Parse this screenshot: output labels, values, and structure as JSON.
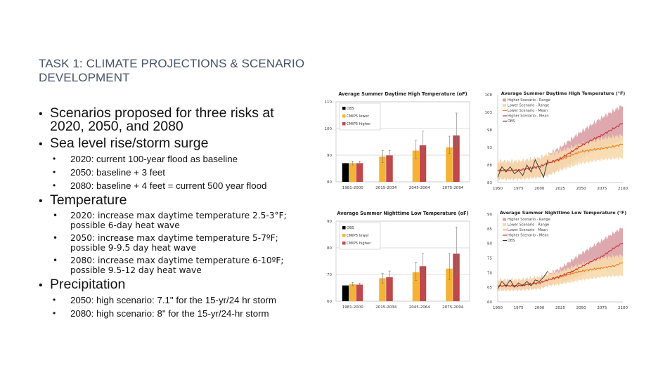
{
  "slide": {
    "title": "TASK 1: CLIMATE PROJECTIONS & SCENARIO DEVELOPMENT",
    "bullets": [
      {
        "text": "Scenarios proposed for three risks at 2020, 2050, and 2080",
        "sub": []
      },
      {
        "text": "Sea level rise/storm surge",
        "sub": [
          "2020: current 100-year flood as baseline",
          "2050: baseline + 3 feet",
          "2080: baseline + 4 feet = current 500 year flood"
        ]
      },
      {
        "text": "Temperature",
        "sub": [
          "2020: increase max daytime temperature 2.5-3°F; possible 6-day heat wave",
          "2050: increase max daytime temperature 5-7ºF; possible 9-9.5 day heat wave",
          "2080: increase max daytime temperature 6-10ºF; possible 9.5-12 day heat wave"
        ]
      },
      {
        "text": "Precipitation",
        "sub": [
          "2050: high scenario: 7.1\" for the 15-yr/24 hr storm",
          "2080: high scenario: 8\" for the 15-yr/24-hr storm"
        ]
      }
    ]
  },
  "colors": {
    "title": "#44546a",
    "obs": "#000000",
    "lower": "#f5b335",
    "higher": "#c0474a",
    "lower_range": "#f7d9ad",
    "higher_range": "#d9a0a6",
    "lower_mean": "#e8821e",
    "higher_mean": "#c9363b",
    "grid": "#d0d0d0"
  },
  "chart_data": [
    {
      "type": "bar",
      "title": "Average Summer Daytime High Temperature (oF)",
      "categories": [
        "1981-2000",
        "2015-2034",
        "2045-2064",
        "2075-2094"
      ],
      "ylim": [
        80,
        110
      ],
      "yticks": [
        80,
        90,
        100,
        110
      ],
      "legend": "top-left",
      "series": [
        {
          "name": "OBS",
          "values": [
            87,
            null,
            null,
            null
          ],
          "err_low": [
            null,
            null,
            null,
            null
          ],
          "err_high": [
            null,
            null,
            null,
            null
          ]
        },
        {
          "name": "CMIP5 lower",
          "values": [
            87,
            89.5,
            91.7,
            92.9
          ],
          "err_low": [
            86.3,
            87.2,
            88.7,
            90.7
          ],
          "err_high": [
            87.8,
            91.7,
            95.6,
            97.1
          ]
        },
        {
          "name": "CMIP5 higher",
          "values": [
            87,
            89.9,
            93.7,
            97.4
          ],
          "err_low": [
            86.3,
            87.3,
            90.8,
            93.2
          ],
          "err_high": [
            87.8,
            91.8,
            99.0,
            105.8
          ]
        }
      ]
    },
    {
      "type": "line",
      "title": "Average Summer Daytime High Temperature (°F)",
      "xlim": [
        1950,
        2100
      ],
      "xticks": [
        1950,
        1975,
        2000,
        2025,
        2050,
        2075,
        2100
      ],
      "ylim": [
        83,
        108
      ],
      "yticks": [
        83,
        88,
        93,
        98,
        103,
        108
      ],
      "legend": "top-left",
      "series": [
        {
          "name": "Higher Scenario - Range",
          "kind": "band",
          "x": [
            1950,
            1975,
            2000,
            2010,
            2025,
            2050,
            2075,
            2100
          ],
          "low": [
            84,
            84,
            84.5,
            85,
            87,
            90,
            93,
            95
          ],
          "high": [
            89,
            89,
            90,
            91,
            93,
            97.5,
            101.5,
            105
          ]
        },
        {
          "name": "Lower Scenario - Range",
          "kind": "band",
          "x": [
            1950,
            1975,
            2000,
            2010,
            2025,
            2050,
            2075,
            2100
          ],
          "low": [
            84,
            84,
            84.5,
            85,
            86.5,
            88.5,
            89.5,
            90
          ],
          "high": [
            89,
            89,
            90,
            91,
            92,
            94,
            95.5,
            96.5
          ]
        },
        {
          "name": "Lower Scenario - Mean",
          "kind": "line",
          "x": [
            1950,
            1975,
            2000,
            2010,
            2025,
            2040,
            2050,
            2060,
            2075,
            2090,
            2100
          ],
          "y": [
            86.5,
            86.5,
            87.5,
            88.5,
            89.5,
            91,
            91.8,
            92.2,
            92.7,
            93.3,
            94
          ]
        },
        {
          "name": "Higher Scenario - Mean",
          "kind": "line",
          "x": [
            1950,
            1975,
            2000,
            2010,
            2025,
            2040,
            2050,
            2060,
            2075,
            2090,
            2100
          ],
          "y": [
            86.5,
            86.5,
            87.5,
            88.5,
            89.8,
            92,
            93.5,
            94.8,
            96.5,
            98.5,
            100
          ]
        },
        {
          "name": "OBS",
          "kind": "line",
          "x": [
            1950,
            1955,
            1960,
            1965,
            1970,
            1975,
            1980,
            1985,
            1990,
            1995,
            2000,
            2005,
            2010
          ],
          "y": [
            84.5,
            87.5,
            86,
            87.5,
            85.5,
            86.5,
            85,
            88,
            86,
            89.5,
            87,
            84.5,
            89.5
          ]
        }
      ]
    },
    {
      "type": "bar",
      "title": "Average Summer Nighttime Low Temperature (oF)",
      "categories": [
        "1981-2000",
        "2015-2034",
        "2045-2064",
        "2075-2094"
      ],
      "ylim": [
        60,
        90
      ],
      "yticks": [
        60,
        70,
        80,
        90
      ],
      "legend": "top-left",
      "series": [
        {
          "name": "OBS",
          "values": [
            65.9,
            null,
            null,
            null
          ],
          "err_low": [
            null,
            null,
            null,
            null
          ],
          "err_high": [
            null,
            null,
            null,
            null
          ]
        },
        {
          "name": "CMIP5 lower",
          "values": [
            66.4,
            68.6,
            70.9,
            72.2
          ],
          "err_low": [
            65.8,
            66.8,
            67.8,
            68.1
          ],
          "err_high": [
            67.0,
            70.4,
            74.6,
            77.8
          ]
        },
        {
          "name": "CMIP5 higher",
          "values": [
            66.2,
            69.0,
            73.1,
            77.8
          ],
          "err_low": [
            65.6,
            66.9,
            68.6,
            69.8
          ],
          "err_high": [
            66.8,
            71.3,
            77.8,
            87.8
          ]
        }
      ]
    },
    {
      "type": "line",
      "title": "Average Summer Nighttime Low Temperature (°F)",
      "xlim": [
        1950,
        2100
      ],
      "xticks": [
        1950,
        1975,
        2000,
        2025,
        2050,
        2075,
        2100
      ],
      "ylim": [
        60,
        90
      ],
      "yticks": [
        60,
        65,
        70,
        75,
        80,
        85,
        90
      ],
      "legend": "top-left",
      "series": [
        {
          "name": "Higher Scenario - Range",
          "kind": "band",
          "x": [
            1950,
            1975,
            2000,
            2010,
            2025,
            2050,
            2075,
            2100
          ],
          "low": [
            64,
            64,
            64.5,
            65.5,
            66.5,
            69,
            72,
            74
          ],
          "high": [
            67.5,
            67.5,
            68.5,
            69.5,
            71.5,
            76.5,
            81,
            85.5
          ]
        },
        {
          "name": "Lower Scenario - Range",
          "kind": "band",
          "x": [
            1950,
            1975,
            2000,
            2010,
            2025,
            2050,
            2075,
            2100
          ],
          "low": [
            64,
            64,
            64.5,
            65.5,
            66,
            67.5,
            68.5,
            69
          ],
          "high": [
            67.5,
            67.5,
            68.5,
            69.5,
            70.5,
            73,
            75,
            76
          ]
        },
        {
          "name": "Lower Scenario - Mean",
          "kind": "line",
          "x": [
            1950,
            1975,
            2000,
            2010,
            2025,
            2040,
            2050,
            2060,
            2075,
            2090,
            2100
          ],
          "y": [
            65.5,
            65.5,
            66.5,
            67.5,
            68.5,
            69.8,
            70.5,
            71,
            71.6,
            72.3,
            73.5
          ]
        },
        {
          "name": "Higher Scenario - Mean",
          "kind": "line",
          "x": [
            1950,
            1975,
            2000,
            2010,
            2025,
            2040,
            2050,
            2060,
            2075,
            2090,
            2100
          ],
          "y": [
            65.5,
            65.5,
            66.5,
            67.5,
            68.8,
            70.5,
            72,
            73.5,
            75.5,
            78.5,
            80.2
          ]
        },
        {
          "name": "OBS",
          "kind": "line",
          "x": [
            1950,
            1955,
            1960,
            1965,
            1970,
            1975,
            1980,
            1985,
            1990,
            1995,
            2000,
            2005,
            2010
          ],
          "y": [
            64.5,
            67,
            65.5,
            67.5,
            65,
            66.5,
            65.5,
            67,
            65.5,
            67.5,
            67,
            68.5,
            70.5
          ]
        }
      ]
    }
  ]
}
